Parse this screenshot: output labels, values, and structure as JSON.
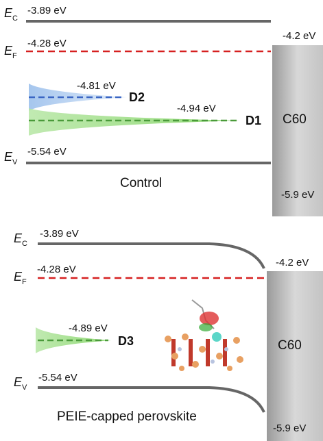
{
  "panels": [
    {
      "levels": [
        {
          "symbol": "E",
          "subscript": "C",
          "value": "-3.89 eV"
        },
        {
          "symbol": "E",
          "subscript": "F",
          "value": "-4.28 eV"
        },
        {
          "symbol": "E",
          "subscript": "V",
          "value": "-5.54 eV"
        }
      ],
      "defects": [
        {
          "name": "D2",
          "value": "-4.81 eV"
        },
        {
          "name": "D1",
          "value": "-4.94 eV"
        }
      ],
      "caption": "Control",
      "contact": {
        "name": "C60",
        "top": "-4.2 eV",
        "bottom": "-5.9 eV"
      }
    },
    {
      "levels": [
        {
          "symbol": "E",
          "subscript": "C",
          "value": "-3.89 eV"
        },
        {
          "symbol": "E",
          "subscript": "F",
          "value": "-4.28 eV"
        },
        {
          "symbol": "E",
          "subscript": "V",
          "value": "-5.54 eV"
        }
      ],
      "defects": [
        {
          "name": "D3",
          "value": "-4.89 eV"
        }
      ],
      "caption": "PEIE-capped perovskite",
      "contact": {
        "name": "C60",
        "top": "-4.2 eV",
        "bottom": "-5.9 eV"
      }
    }
  ]
}
